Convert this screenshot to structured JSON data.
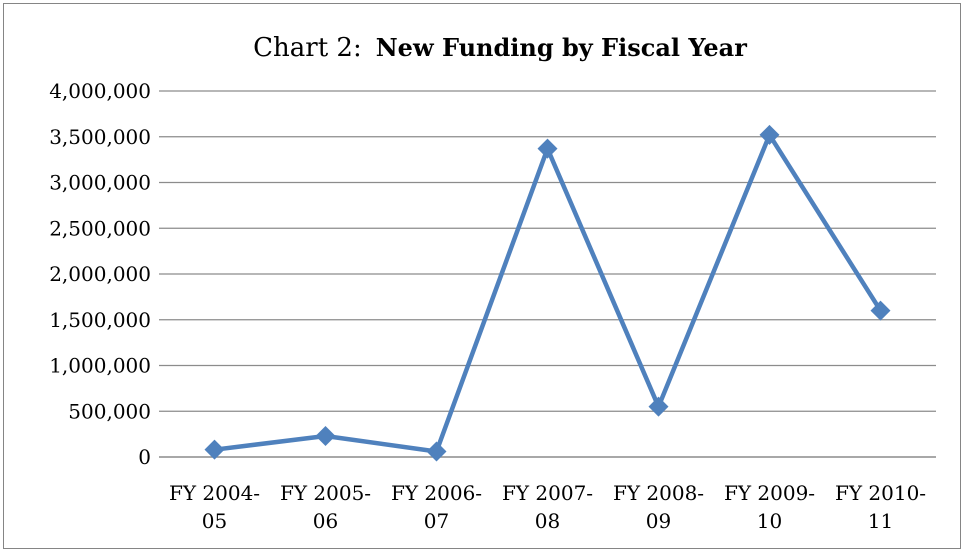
{
  "chart_data": {
    "type": "line",
    "title_prefix": "Chart 2:",
    "title": "New Funding by Fiscal Year",
    "categories": [
      [
        "FY 2004-",
        "05"
      ],
      [
        "FY 2005-",
        "06"
      ],
      [
        "FY 2006-",
        "07"
      ],
      [
        "FY 2007-",
        "08"
      ],
      [
        "FY 2008-",
        "09"
      ],
      [
        "FY 2009-",
        "10"
      ],
      [
        "FY 2010-",
        "11"
      ]
    ],
    "series": [
      {
        "values": [
          80000,
          230000,
          60000,
          3370000,
          550000,
          3520000,
          1600000
        ],
        "color": "#4f81bd",
        "marker": "diamond"
      }
    ],
    "ylim": [
      0,
      4000000
    ],
    "yticks": [
      0,
      500000,
      1000000,
      1500000,
      2000000,
      2500000,
      3000000,
      3500000,
      4000000
    ],
    "ytick_labels": [
      "0",
      "500,000",
      "1,000,000",
      "1,500,000",
      "2,000,000",
      "2,500,000",
      "3,000,000",
      "3,500,000",
      "4,000,000"
    ],
    "grid": true,
    "legend": "none",
    "xlabel": "",
    "ylabel": ""
  }
}
